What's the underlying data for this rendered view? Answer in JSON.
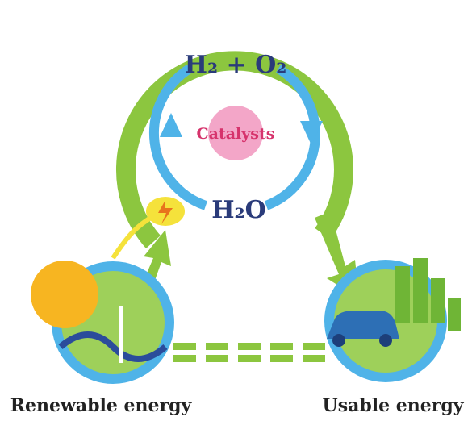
{
  "cycle": {
    "top_label": "H₂ + O₂",
    "center_label": "Catalysts",
    "bottom_label": "H₂O"
  },
  "nodes": [
    {
      "label": "Renewable energy"
    },
    {
      "label": "Usable energy"
    }
  ]
}
